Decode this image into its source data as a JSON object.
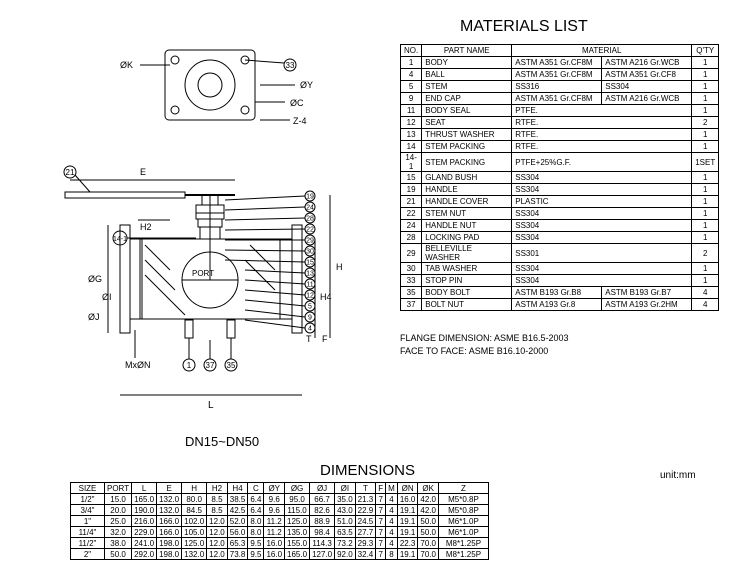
{
  "materialsTitle": "MATERIALS LIST",
  "materialsHeaders": {
    "no": "NO.",
    "part": "PART NAME",
    "material": "MATERIAL",
    "qty": "Q'TY"
  },
  "materials": [
    {
      "no": "1",
      "part": "BODY",
      "mat1": "ASTM A351 Gr.CF8M",
      "mat2": "ASTM A216 Gr.WCB",
      "qty": "1"
    },
    {
      "no": "4",
      "part": "BALL",
      "mat1": "ASTM A351 Gr.CF8M",
      "mat2": "ASTM A351 Gr.CF8",
      "qty": "1"
    },
    {
      "no": "5",
      "part": "STEM",
      "mat1": "SS316",
      "mat2": "SS304",
      "qty": "1"
    },
    {
      "no": "9",
      "part": "END CAP",
      "mat1": "ASTM A351 Gr.CF8M",
      "mat2": "ASTM A216 Gr.WCB",
      "qty": "1"
    },
    {
      "no": "11",
      "part": "BODY SEAL",
      "mat1": "PTFE.",
      "mat2": "",
      "qty": "1"
    },
    {
      "no": "12",
      "part": "SEAT",
      "mat1": "RTFE.",
      "mat2": "",
      "qty": "2"
    },
    {
      "no": "13",
      "part": "THRUST WASHER",
      "mat1": "RTFE.",
      "mat2": "",
      "qty": "1"
    },
    {
      "no": "14",
      "part": "STEM PACKING",
      "mat1": "RTFE.",
      "mat2": "",
      "qty": "1"
    },
    {
      "no": "14-1",
      "part": "STEM PACKING",
      "mat1": "PTFE+25%G.F.",
      "mat2": "",
      "qty": "1SET"
    },
    {
      "no": "15",
      "part": "GLAND BUSH",
      "mat1": "SS304",
      "mat2": "",
      "qty": "1"
    },
    {
      "no": "19",
      "part": "HANDLE",
      "mat1": "SS304",
      "mat2": "",
      "qty": "1"
    },
    {
      "no": "21",
      "part": "HANDLE COVER",
      "mat1": "PLASTIC",
      "mat2": "",
      "qty": "1"
    },
    {
      "no": "22",
      "part": "STEM NUT",
      "mat1": "SS304",
      "mat2": "",
      "qty": "1"
    },
    {
      "no": "24",
      "part": "HANDLE NUT",
      "mat1": "SS304",
      "mat2": "",
      "qty": "1"
    },
    {
      "no": "28",
      "part": "LOCKING  PAD",
      "mat1": "SS304",
      "mat2": "",
      "qty": "1"
    },
    {
      "no": "29",
      "part": "BELLEVILLE WASHER",
      "mat1": "SS301",
      "mat2": "",
      "qty": "2"
    },
    {
      "no": "30",
      "part": "TAB WASHER",
      "mat1": "SS304",
      "mat2": "",
      "qty": "1"
    },
    {
      "no": "33",
      "part": "STOP PIN",
      "mat1": "SS304",
      "mat2": "",
      "qty": "1"
    },
    {
      "no": "35",
      "part": "BODY BOLT",
      "mat1": "ASTM B193 Gr.B8",
      "mat2": "ASTM B193 Gr.B7",
      "qty": "4"
    },
    {
      "no": "37",
      "part": "BOLT NUT",
      "mat1": "ASTM A193 Gr.8",
      "mat2": "ASTM A193 Gr.2HM",
      "qty": "4"
    }
  ],
  "flangeNote1": "FLANGE DIMENSION: ASME B16.5-2003",
  "flangeNote2": "FACE TO FACE: ASME B16.10-2000",
  "rangeLabel": "DN15~DN50",
  "dimensionsTitle": "DIMENSIONS",
  "unitLabel": "unit:mm",
  "dimHeaders": [
    "SIZE",
    "PORT",
    "L",
    "E",
    "H",
    "H2",
    "H4",
    "C",
    "ØY",
    "ØG",
    "ØJ",
    "ØI",
    "T",
    "F",
    "M",
    "ØN",
    "ØK",
    "Z"
  ],
  "dimRows": [
    [
      "1/2\"",
      "15.0",
      "165.0",
      "132.0",
      "80.0",
      "8.5",
      "38.5",
      "6.4",
      "9.6",
      "95.0",
      "66.7",
      "35.0",
      "21.3",
      "7",
      "4",
      "16.0",
      "42.0",
      "M5*0.8P"
    ],
    [
      "3/4\"",
      "20.0",
      "190.0",
      "132.0",
      "84.5",
      "8.5",
      "42.5",
      "6.4",
      "9.6",
      "115.0",
      "82.6",
      "43.0",
      "22.9",
      "7",
      "4",
      "19.1",
      "42.0",
      "M5*0.8P"
    ],
    [
      "1\"",
      "25.0",
      "216.0",
      "166.0",
      "102.0",
      "12.0",
      "52.0",
      "8.0",
      "11.2",
      "125.0",
      "88.9",
      "51.0",
      "24.5",
      "7",
      "4",
      "19.1",
      "50.0",
      "M6*1.0P"
    ],
    [
      "11/4\"",
      "32.0",
      "229.0",
      "166.0",
      "105.0",
      "12.0",
      "56.0",
      "8.0",
      "11.2",
      "135.0",
      "98.4",
      "63.5",
      "27.7",
      "7",
      "4",
      "19.1",
      "50.0",
      "M6*1.0P"
    ],
    [
      "11/2\"",
      "38.0",
      "241.0",
      "198.0",
      "125.0",
      "12.0",
      "65.3",
      "9.5",
      "16.0",
      "155.0",
      "114.3",
      "73.2",
      "29.3",
      "7",
      "4",
      "22.3",
      "70.0",
      "M8*1.25P"
    ],
    [
      "2\"",
      "50.0",
      "292.0",
      "198.0",
      "132.0",
      "12.0",
      "73.8",
      "9.5",
      "16.0",
      "165.0",
      "127.0",
      "92.0",
      "32.4",
      "7",
      "8",
      "19.1",
      "70.0",
      "M8*1.25P"
    ]
  ],
  "drawing": {
    "balloons_right": [
      "19",
      "24",
      "28",
      "22",
      "29",
      "30",
      "15",
      "13",
      "11",
      "12",
      "5",
      "9",
      "4"
    ],
    "balloons_bottom": [
      "1",
      "37",
      "35"
    ],
    "balloons_top": [
      "33"
    ],
    "balloon_left_handle": "21",
    "balloon_left_small": "14-1",
    "labels": {
      "E": "E",
      "H2": "H2",
      "H": "H",
      "H4": "H4",
      "T": "T",
      "F": "F",
      "OG": "ØG",
      "OI": "ØI",
      "OJ": "ØJ",
      "OK": "ØK",
      "OC": "ØC",
      "OY": "ØY",
      "Z4": "Z-4",
      "PORT": "PORT",
      "MxON": "MxØN",
      "L": "L"
    },
    "stroke": "#000000",
    "fill": "#ffffff"
  }
}
